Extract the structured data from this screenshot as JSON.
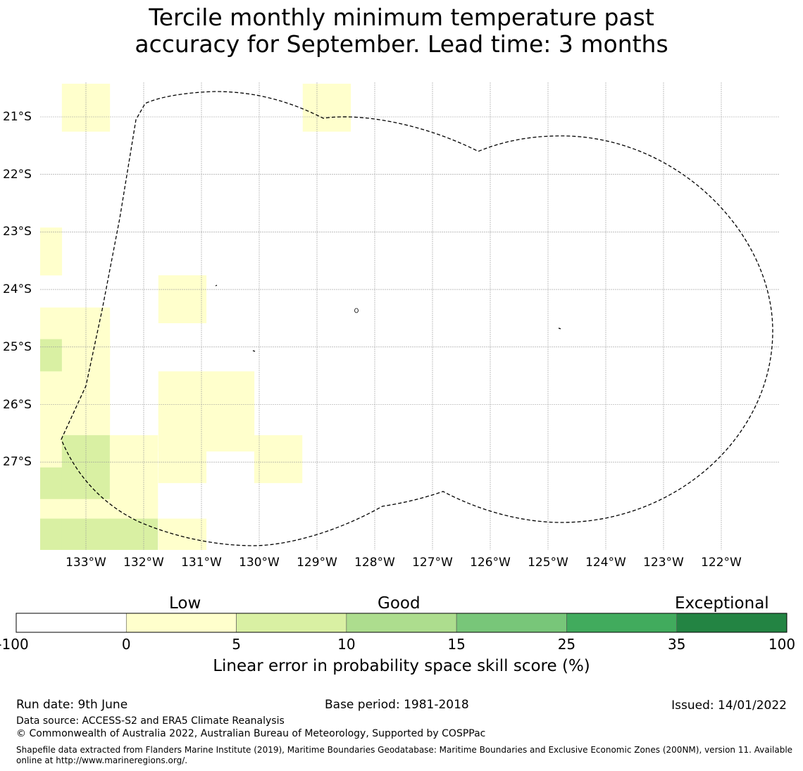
{
  "title": {
    "line1": "Tercile monthly minimum temperature past",
    "line2": "accuracy for September. Lead time: 3 months"
  },
  "map": {
    "lat_labels": [
      "21°S",
      "22°S",
      "23°S",
      "24°S",
      "25°S",
      "26°S",
      "27°S"
    ],
    "lon_labels": [
      "133°W",
      "132°W",
      "131°W",
      "130°W",
      "129°W",
      "128°W",
      "127°W",
      "126°W",
      "125°W",
      "124°W",
      "123°W",
      "122°W"
    ],
    "boundary_style": "dashed",
    "grid": true
  },
  "chart_data": {
    "type": "heatmap",
    "cell_size_deg": 0.833,
    "cells": [
      {
        "lon": -133.0,
        "lat": -20.84,
        "score": 2.5
      },
      {
        "lon": -128.83,
        "lat": -20.84,
        "score": 2.5
      },
      {
        "lon": -133.83,
        "lat": -23.34,
        "score": 2.5
      },
      {
        "lon": -131.33,
        "lat": -24.17,
        "score": 2.5
      },
      {
        "lon": -133.83,
        "lat": -24.73,
        "score": 2.5
      },
      {
        "lon": -133.0,
        "lat": -24.73,
        "score": 2.5
      },
      {
        "lon": -133.83,
        "lat": -25.28,
        "score": 7.5
      },
      {
        "lon": -133.0,
        "lat": -25.28,
        "score": 2.5
      },
      {
        "lon": -133.83,
        "lat": -25.84,
        "score": 2.5
      },
      {
        "lon": -133.0,
        "lat": -25.84,
        "score": 2.5
      },
      {
        "lon": -131.33,
        "lat": -25.84,
        "score": 2.5
      },
      {
        "lon": -130.5,
        "lat": -25.84,
        "score": 2.5
      },
      {
        "lon": -133.83,
        "lat": -26.4,
        "score": 2.5
      },
      {
        "lon": -133.0,
        "lat": -26.4,
        "score": 2.5
      },
      {
        "lon": -131.33,
        "lat": -26.4,
        "score": 2.5
      },
      {
        "lon": -130.5,
        "lat": -26.4,
        "score": 2.5
      },
      {
        "lon": -133.83,
        "lat": -26.95,
        "score": 2.5
      },
      {
        "lon": -133.0,
        "lat": -26.95,
        "score": 7.5
      },
      {
        "lon": -132.17,
        "lat": -26.95,
        "score": 2.5
      },
      {
        "lon": -131.33,
        "lat": -26.95,
        "score": 2.5
      },
      {
        "lon": -129.67,
        "lat": -26.95,
        "score": 2.5
      },
      {
        "lon": -133.83,
        "lat": -27.51,
        "score": 7.5
      },
      {
        "lon": -133.0,
        "lat": -27.51,
        "score": 7.5
      },
      {
        "lon": -132.17,
        "lat": -27.51,
        "score": 2.5
      },
      {
        "lon": -133.83,
        "lat": -28.06,
        "score": 2.5
      },
      {
        "lon": -133.0,
        "lat": -28.06,
        "score": 2.5
      },
      {
        "lon": -132.17,
        "lat": -28.06,
        "score": 2.5
      },
      {
        "lon": -133.83,
        "lat": -28.4,
        "score": 7.5
      },
      {
        "lon": -133.0,
        "lat": -28.4,
        "score": 7.5
      },
      {
        "lon": -132.17,
        "lat": -28.4,
        "score": 7.5
      },
      {
        "lon": -131.33,
        "lat": -28.4,
        "score": 2.5
      }
    ],
    "colorbar": {
      "categories": [
        "Low",
        "Good",
        "Exceptional"
      ],
      "ticks": [
        "-100",
        "0",
        "5",
        "10",
        "15",
        "25",
        "35",
        "100"
      ],
      "bins": [
        {
          "from": -100,
          "to": 0,
          "color": "#ffffff"
        },
        {
          "from": 0,
          "to": 5,
          "color": "#ffffcc"
        },
        {
          "from": 5,
          "to": 10,
          "color": "#d9f0a3"
        },
        {
          "from": 10,
          "to": 15,
          "color": "#addd8e"
        },
        {
          "from": 15,
          "to": 25,
          "color": "#78c679"
        },
        {
          "from": 25,
          "to": 35,
          "color": "#41ab5d"
        },
        {
          "from": 35,
          "to": 100,
          "color": "#238443"
        }
      ],
      "label": "Linear error in probability space skill score (%)"
    }
  },
  "footer": {
    "run_date": "Run date: 9th June",
    "base_period": "Base period: 1981-2018",
    "issued": "Issued: 14/01/2022",
    "data_source": "Data source: ACCESS-S2 and ERA5 Climate Reanalysis",
    "copyright": "© Commonwealth of Australia 2022, Australian Bureau of Meteorology, Supported by COSPPac",
    "shapefile": "Shapefile data extracted from Flanders Marine Institute (2019), Maritime Boundaries Geodatabase: Maritime Boundaries and Exclusive Economic Zones (200NM), version 11. Available online at http://www.marineregions.org/."
  }
}
